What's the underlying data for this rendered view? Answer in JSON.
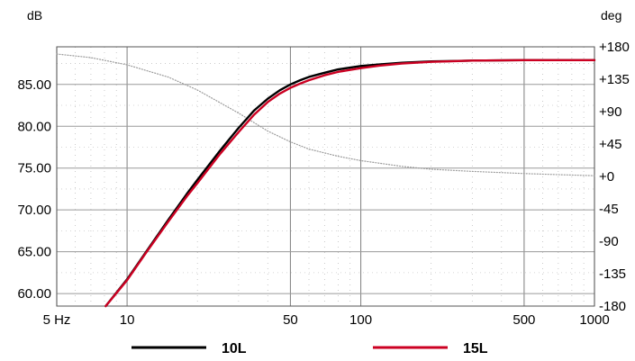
{
  "chart_data": {
    "type": "line",
    "title": "",
    "xlabel": "",
    "ylabel": "dB",
    "y2label": "deg",
    "x_scale": "log",
    "xlim": [
      5,
      1000
    ],
    "ylim": [
      58.5,
      89.5
    ],
    "y2lim": [
      -180,
      180
    ],
    "grid": true,
    "legend_position": "bottom",
    "x_ticks": [
      {
        "value": 5,
        "label": "5 Hz"
      },
      {
        "value": 10,
        "label": "10"
      },
      {
        "value": 50,
        "label": "50"
      },
      {
        "value": 100,
        "label": "100"
      },
      {
        "value": 500,
        "label": "500"
      },
      {
        "value": 1000,
        "label": "1000"
      }
    ],
    "y_ticks": [
      {
        "value": 60,
        "label": "60.00"
      },
      {
        "value": 65,
        "label": "65.00"
      },
      {
        "value": 70,
        "label": "70.00"
      },
      {
        "value": 75,
        "label": "75.00"
      },
      {
        "value": 80,
        "label": "80.00"
      },
      {
        "value": 85,
        "label": "85.00"
      }
    ],
    "y2_ticks": [
      {
        "value": 180,
        "label": "+180"
      },
      {
        "value": 135,
        "label": "+135"
      },
      {
        "value": 90,
        "label": "+90"
      },
      {
        "value": 45,
        "label": "+45"
      },
      {
        "value": 0,
        "label": "+0"
      },
      {
        "value": -45,
        "label": "-45"
      },
      {
        "value": -90,
        "label": "-90"
      },
      {
        "value": -135,
        "label": "-135"
      },
      {
        "value": -180,
        "label": "-180"
      }
    ],
    "series": [
      {
        "name": "10L",
        "color": "#000000",
        "axis": "left",
        "x": [
          8.1,
          10,
          12,
          15,
          18,
          20,
          25,
          30,
          35,
          40,
          45,
          50,
          55,
          60,
          70,
          80,
          100,
          120,
          150,
          200,
          300,
          500,
          700,
          1000
        ],
        "y": [
          58.5,
          61.7,
          64.9,
          68.8,
          71.9,
          73.6,
          77.1,
          79.8,
          81.9,
          83.3,
          84.3,
          85.0,
          85.5,
          85.9,
          86.4,
          86.8,
          87.2,
          87.4,
          87.6,
          87.75,
          87.85,
          87.9,
          87.9,
          87.9
        ]
      },
      {
        "name": "15L",
        "color": "#cc0022",
        "axis": "left",
        "x": [
          8.1,
          10,
          12,
          15,
          18,
          20,
          25,
          30,
          35,
          40,
          45,
          50,
          55,
          60,
          70,
          80,
          100,
          120,
          150,
          200,
          300,
          500,
          700,
          1000
        ],
        "y": [
          58.5,
          61.6,
          64.8,
          68.6,
          71.6,
          73.2,
          76.7,
          79.3,
          81.4,
          82.9,
          83.9,
          84.6,
          85.1,
          85.5,
          86.1,
          86.5,
          86.95,
          87.25,
          87.5,
          87.7,
          87.85,
          87.9,
          87.9,
          87.9
        ]
      },
      {
        "name": "",
        "color": "#9a9a9a",
        "axis": "right",
        "style": "dotted",
        "x": [
          5,
          7,
          10,
          15,
          20,
          30,
          40,
          50,
          60,
          80,
          100,
          150,
          200,
          300,
          500,
          700,
          1000
        ],
        "y": [
          170,
          165,
          155,
          138,
          120,
          88,
          63,
          48,
          38,
          28,
          22,
          14,
          10,
          7,
          4,
          2.5,
          1
        ]
      }
    ]
  }
}
